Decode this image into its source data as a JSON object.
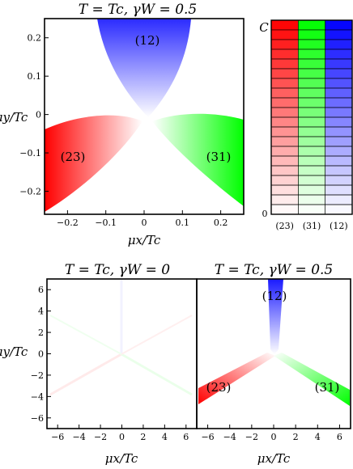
{
  "chart_data": [
    {
      "type": "heatmap",
      "title": "T = Tc, γW = 0.5",
      "xlabel": "μx/Tc",
      "ylabel": "μy/Tc",
      "xlim": [
        -0.26,
        0.26
      ],
      "ylim": [
        -0.26,
        0.25
      ],
      "xticks": [
        "−0.2",
        "−0.1",
        "0",
        "0.1",
        "0.2"
      ],
      "yticks": [
        "0.2",
        "0.1",
        "0",
        "−0.1",
        "−0.2"
      ],
      "regions": [
        {
          "label": "(12)",
          "color": "#0000ff",
          "direction_deg": 90
        },
        {
          "label": "(23)",
          "color": "#ff0000",
          "direction_deg": 210
        },
        {
          "label": "(31)",
          "color": "#00ff00",
          "direction_deg": 330
        }
      ],
      "grid": false
    },
    {
      "type": "bar",
      "ylabel": "C",
      "ymin_label": "0",
      "categories": [
        "(23)",
        "(31)",
        "(12)"
      ],
      "colors": [
        "#ff0000",
        "#00ff00",
        "#0000ff"
      ],
      "levels": 20
    },
    {
      "type": "heatmap",
      "title": "T = Tc, γW = 0",
      "xlabel": "μx/Tc",
      "ylabel": "μy/Tc",
      "xlim": [
        -7,
        7
      ],
      "ylim": [
        -7,
        7
      ],
      "xticks": [
        "−6",
        "−4",
        "−2",
        "0",
        "2",
        "4",
        "6"
      ],
      "yticks": [
        "6",
        "4",
        "2",
        "0",
        "−2",
        "−4",
        "−6"
      ],
      "regions": [],
      "grid": false
    },
    {
      "type": "heatmap",
      "title": "T = Tc, γW = 0.5",
      "xlabel": "μx/Tc",
      "xlim": [
        -7,
        7
      ],
      "ylim": [
        -7,
        7
      ],
      "xticks": [
        "−6",
        "−4",
        "−2",
        "0",
        "2",
        "4",
        "6"
      ],
      "regions": [
        {
          "label": "(12)",
          "color": "#0000ff",
          "direction_deg": 90
        },
        {
          "label": "(23)",
          "color": "#ff0000",
          "direction_deg": 210
        },
        {
          "label": "(31)",
          "color": "#00ff00",
          "direction_deg": 330
        }
      ],
      "grid": false
    }
  ]
}
